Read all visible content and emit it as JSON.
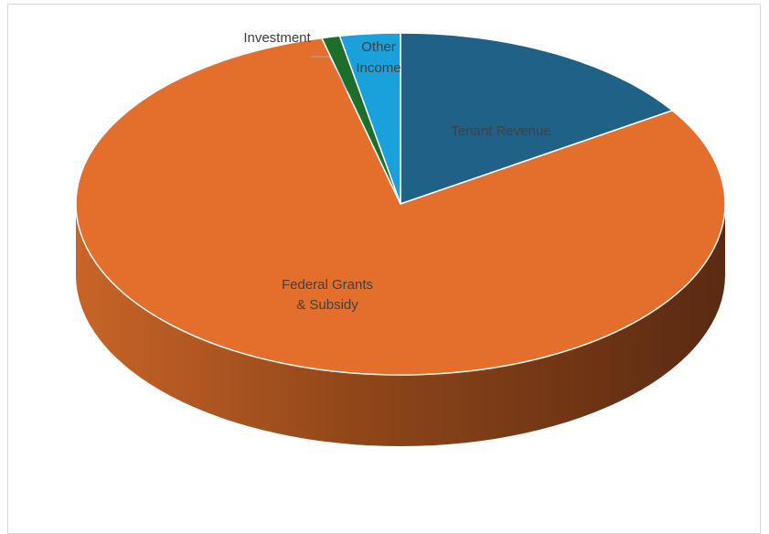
{
  "chart_data": {
    "type": "pie",
    "style": "3d",
    "title": "",
    "legend": "none",
    "slices": [
      {
        "label": "Tenant Revenue",
        "value": 15.8,
        "color": "#1F6187"
      },
      {
        "label": "Federal Grants & Subsidy",
        "value": 80.3,
        "color": "#E46F2D"
      },
      {
        "label": "Investment",
        "value": 0.9,
        "color": "#1B6F2A"
      },
      {
        "label": "Other Income",
        "value": 3.0,
        "color": "#1AA0DA"
      }
    ]
  },
  "labels": {
    "tenant_revenue": "Tenant Revenue",
    "federal_line1": "Federal Grants",
    "federal_line2": "& Subsidy",
    "investment": "Investment",
    "other_line1": "Other",
    "other_line2": "Income"
  }
}
